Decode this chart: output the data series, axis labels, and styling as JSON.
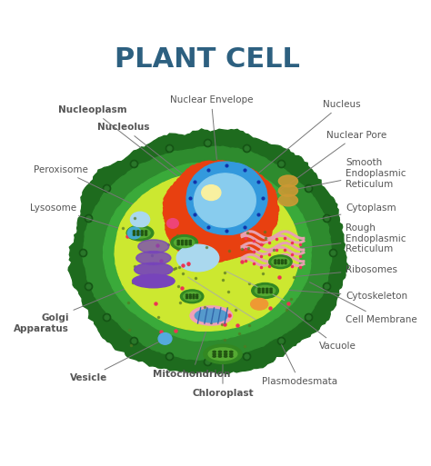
{
  "title": "PLANT CELL",
  "title_color": "#2d6080",
  "title_fontsize": 22,
  "background_color": "#ffffff",
  "label_fontsize": 7.5,
  "label_color": "#555555",
  "bold_labels": [
    "Nucleoplasm",
    "Nucleolus",
    "Nuclear Envelope",
    "Nucleus",
    "Nuclear Pore",
    "Peroxisome",
    "Smooth\nEndoplasmic\nReticulum",
    "Lysosome",
    "Cytoplasm",
    "Rough\nEndoplasmic\nReticulum",
    "Ribosomes",
    "Cytoskeleton",
    "Golgi\nApparatus",
    "Cell Membrane",
    "Mitochondrion",
    "Vacuole",
    "Vesicle",
    "Chloroplast",
    "Plasmodesmata"
  ],
  "cell_wall_outer": "#1e6b1e",
  "cell_wall_mid": "#2e8b2e",
  "cell_wall_inner": "#3aaa3a",
  "cytoplasm_color": "#cce830",
  "nucleus_red_color": "#e84010",
  "nucleus_blue_color": "#3399dd",
  "nucleus_light_blue": "#88ccee",
  "nucleolus_color": "#f8f0a0",
  "golgi_color": "#7744bb",
  "mito_outer": "#ee9933",
  "mito_inner": "#ffddaa",
  "chloro_outer": "#33aa22",
  "chloro_inner": "#55cc33",
  "vacuole_color": "#aad8ee",
  "lysosome_color": "#44aacc",
  "peroxisome_color": "#ee4477",
  "vesicle_color": "#88bbdd",
  "ribosome_color": "#ee3355",
  "smooth_er_color": "#cc9933",
  "rough_er_color": "#dd8833",
  "rough_er_pink": "#e8a0b0",
  "dot_color": "#557722",
  "pore_color": "#1133aa",
  "line_color": "#777777"
}
